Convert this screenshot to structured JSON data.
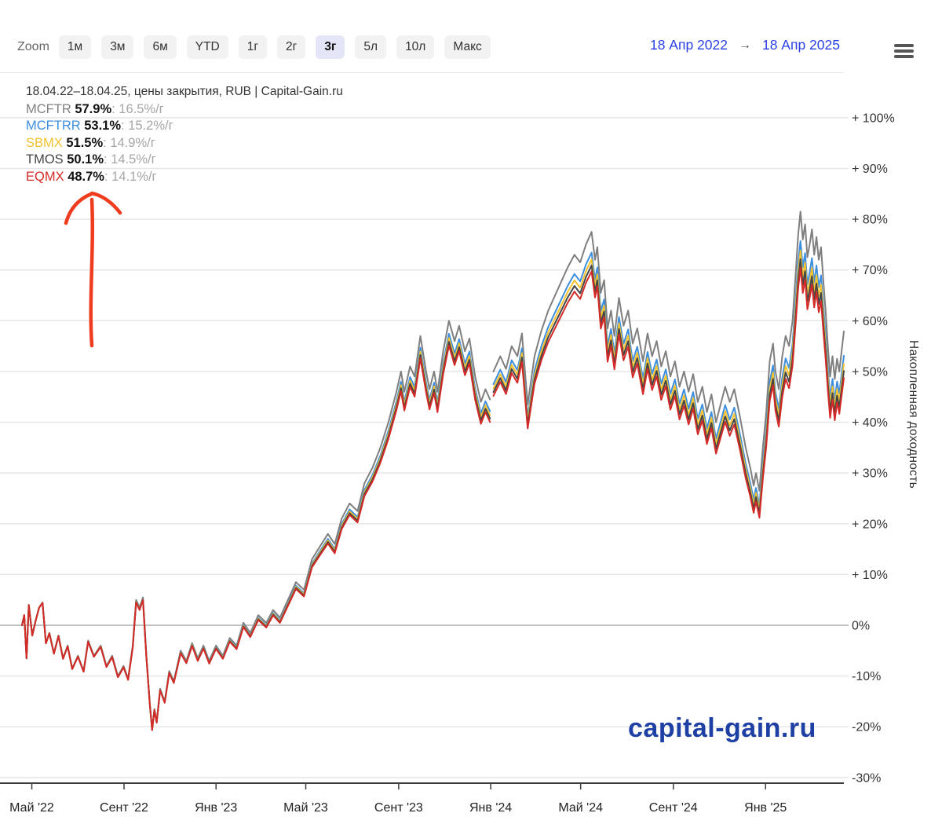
{
  "toolbar": {
    "zoom_label": "Zoom",
    "buttons": [
      "1м",
      "3м",
      "6м",
      "YTD",
      "1г",
      "2г",
      "3г",
      "5л",
      "10л",
      "Макс"
    ],
    "selected": "3г"
  },
  "range": {
    "from": "18 Апр 2022",
    "arrow": "→",
    "to": "18 Апр 2025"
  },
  "watermark": "capital-gain.ru",
  "annotation": {
    "type": "hand-drawn-arrow-up",
    "color": "#f03c1e"
  },
  "chart_data": {
    "type": "line",
    "title": "18.04.22–18.04.25, цены закрытия, RUB | Capital-Gain.ru",
    "ylabel": "Накопленная доходность",
    "ylim": [
      -30,
      100
    ],
    "grid": "horizontal",
    "legend_position": "top-left",
    "y_ticks": [
      {
        "v": 100,
        "label": "+ 100%"
      },
      {
        "v": 90,
        "label": "+ 90%"
      },
      {
        "v": 80,
        "label": "+ 80%"
      },
      {
        "v": 70,
        "label": "+ 70%"
      },
      {
        "v": 60,
        "label": "+ 60%"
      },
      {
        "v": 50,
        "label": "+ 50%"
      },
      {
        "v": 40,
        "label": "+ 40%"
      },
      {
        "v": 30,
        "label": "+ 30%"
      },
      {
        "v": 20,
        "label": "+ 20%"
      },
      {
        "v": 10,
        "label": "+ 10%"
      },
      {
        "v": 0,
        "label": "0%"
      },
      {
        "v": -10,
        "label": "-10%"
      },
      {
        "v": -20,
        "label": "-20%"
      },
      {
        "v": -30,
        "label": "-30%"
      }
    ],
    "x_ticks": [
      {
        "t": 0.43,
        "label": "Май '22"
      },
      {
        "t": 4.47,
        "label": "Сент '22"
      },
      {
        "t": 8.5,
        "label": "Янв '23"
      },
      {
        "t": 12.43,
        "label": "Май '23"
      },
      {
        "t": 16.5,
        "label": "Сент '23"
      },
      {
        "t": 20.53,
        "label": "Янв '24"
      },
      {
        "t": 24.47,
        "label": "Май '24"
      },
      {
        "t": 28.53,
        "label": "Сент '24"
      },
      {
        "t": 32.57,
        "label": "Янв '25"
      }
    ],
    "t_months": [
      0,
      0.1,
      0.2,
      0.3,
      0.45,
      0.6,
      0.75,
      0.9,
      1.05,
      1.2,
      1.4,
      1.6,
      1.8,
      2.0,
      2.2,
      2.45,
      2.7,
      2.9,
      3.15,
      3.45,
      3.7,
      3.95,
      4.2,
      4.45,
      4.65,
      4.85,
      5.0,
      5.15,
      5.3,
      5.45,
      5.6,
      5.7,
      5.8,
      5.9,
      6.05,
      6.25,
      6.45,
      6.65,
      6.95,
      7.2,
      7.45,
      7.7,
      7.95,
      8.2,
      8.5,
      8.8,
      9.1,
      9.4,
      9.7,
      10.0,
      10.35,
      10.7,
      11.0,
      11.3,
      11.65,
      12.0,
      12.35,
      12.7,
      13.05,
      13.4,
      13.7,
      14.0,
      14.35,
      14.7,
      15.0,
      15.35,
      15.7,
      16.05,
      16.4,
      16.6,
      16.75,
      17.0,
      17.2,
      17.45,
      17.7,
      17.85,
      18.05,
      18.2,
      18.45,
      18.7,
      18.95,
      19.15,
      19.4,
      19.6,
      19.85,
      20.1,
      20.3,
      20.5,
      20.58,
      20.65,
      20.95,
      21.2,
      21.45,
      21.7,
      21.9,
      22.15,
      22.45,
      22.75,
      23.05,
      23.35,
      23.6,
      23.9,
      24.2,
      24.45,
      24.7,
      24.95,
      25.1,
      25.2,
      25.35,
      25.5,
      25.65,
      25.8,
      25.95,
      26.15,
      26.35,
      26.55,
      26.75,
      26.95,
      27.2,
      27.4,
      27.6,
      27.8,
      28.0,
      28.2,
      28.4,
      28.6,
      28.8,
      29.0,
      29.2,
      29.4,
      29.6,
      29.8,
      30.0,
      30.2,
      30.4,
      30.6,
      30.8,
      31.0,
      31.2,
      31.45,
      31.7,
      31.9,
      32.05,
      32.15,
      32.3,
      32.45,
      32.6,
      32.75,
      32.9,
      33.0,
      33.15,
      33.3,
      33.45,
      33.6,
      33.75,
      33.9,
      34.0,
      34.1,
      34.2,
      34.3,
      34.4,
      34.5,
      34.6,
      34.7,
      34.8,
      34.9,
      35.0,
      35.1,
      35.2,
      35.3,
      35.4,
      35.5,
      35.6,
      35.7,
      35.8,
      35.9,
      36.0
    ],
    "series": [
      {
        "name": "MCFTR",
        "color": "#7f7f7f",
        "return_total": "57.9%",
        "return_annual": "16.5%/г",
        "values": [
          0,
          2,
          -6.5,
          4,
          -2,
          1,
          3.5,
          4.5,
          -3.5,
          -1.5,
          -5.5,
          -2,
          -6.5,
          -4,
          -8.5,
          -6,
          -9,
          -3,
          -6,
          -4,
          -8,
          -6,
          -10,
          -8,
          -10.5,
          -4,
          5,
          3.5,
          5.5,
          -6,
          -15.5,
          -20.5,
          -16.5,
          -19,
          -12.5,
          -15,
          -9,
          -11,
          -5,
          -7,
          -3.5,
          -6.5,
          -4,
          -7,
          -4,
          -6,
          -2.5,
          -4,
          0.5,
          -1.5,
          2,
          0.5,
          3,
          1.5,
          5,
          8.5,
          7,
          13,
          15.5,
          18,
          16,
          21,
          24,
          22.5,
          28,
          31,
          35,
          40,
          46,
          50,
          46,
          51,
          49,
          57,
          50,
          46.5,
          50,
          46,
          54,
          60,
          56,
          59,
          54,
          56.5,
          49,
          44,
          46.5,
          44.5,
          null,
          50,
          53,
          50.5,
          55,
          53,
          57.5,
          43.5,
          53,
          58,
          62,
          65,
          67.5,
          70.5,
          73,
          71.5,
          75,
          77.5,
          72,
          74.5,
          65.5,
          68,
          58.5,
          62,
          57,
          64.5,
          59,
          62,
          55.5,
          58.5,
          52,
          57.5,
          53,
          56,
          51,
          54,
          49,
          52,
          47,
          50,
          46,
          49.5,
          44,
          47,
          42,
          45.5,
          40,
          43.5,
          47,
          44,
          46.5,
          41,
          35,
          31,
          27.5,
          30,
          26.5,
          35,
          42,
          52,
          55.5,
          50,
          46.5,
          53,
          57,
          55,
          60,
          70,
          77,
          81.5,
          76,
          79,
          72.5,
          75,
          78,
          73,
          76.5,
          72,
          74.5,
          68,
          62,
          55,
          49,
          53,
          48.5,
          52.5,
          50,
          54,
          57.9
        ]
      },
      {
        "name": "MCFTRR",
        "color": "#3e8ede",
        "return_total": "53.1%",
        "return_annual": "15.2%/г",
        "end_gap": 4.8
      },
      {
        "name": "SBMX",
        "color": "#f2c230",
        "return_total": "51.5%",
        "return_annual": "14.9%/г",
        "end_gap": 6.4
      },
      {
        "name": "TMOS",
        "color": "#454545",
        "return_total": "50.1%",
        "return_annual": "14.5%/г",
        "end_gap": 7.8
      },
      {
        "name": "EQMX",
        "color": "#d42a28",
        "return_total": "48.7%",
        "return_annual": "14.1%/г",
        "end_gap": 9.2
      }
    ],
    "gap_model": "value(t) = MCFTR(t) - end_gap * (t/36) * ((MCFTR(t)+30)/87.9)"
  }
}
